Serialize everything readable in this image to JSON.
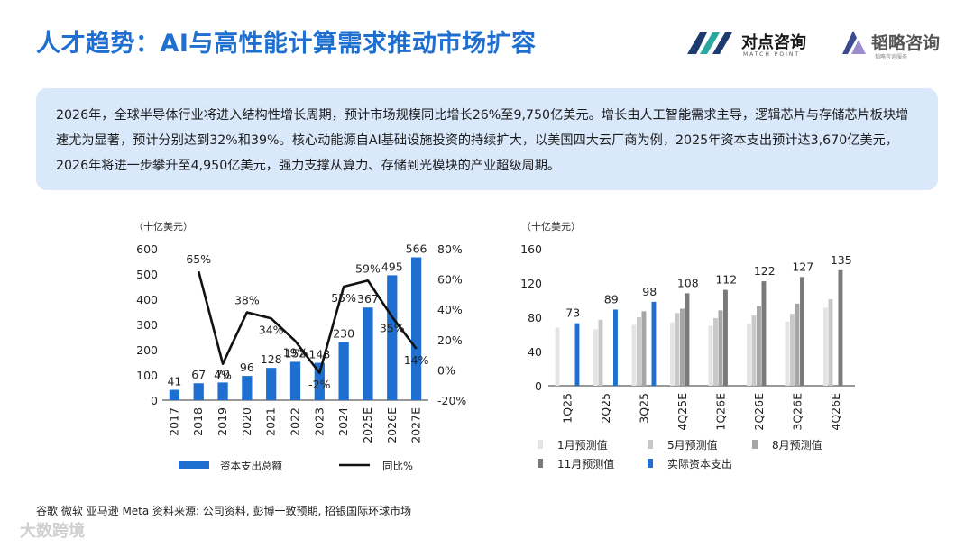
{
  "header": {
    "title": "人才趋势：AI与高性能计算需求推动市场扩容",
    "logo1_name": "对点咨询",
    "logo1_sub": "MATCH POINT",
    "logo2_name": "韬略咨询",
    "logo2_sub": "韬略咨询服务"
  },
  "summary": "2026年，全球半导体行业将进入结构性增长周期，预计市场规模同比增长26%至9,750亿美元。增长由人工智能需求主导，逻辑芯片与存储芯片板块增速尤为显著，预计分别达到32%和39%。核心动能源自AI基础设施投资的持续扩大，以美国四大云厂商为例，2025年资本支出预计达3,670亿美元，2026年将进一步攀升至4,950亿美元，强力支撑从算力、存储到光模块的产业超级周期。",
  "footer": {
    "source": "谷歌 微软 亚马逊 Meta 资料来源: 公司资料, 彭博一致预期, 招银国际环球市场",
    "watermark": "大数跨境"
  },
  "colors": {
    "accent": "#1f6fd1",
    "bar": "#1f6fd1",
    "line": "#111111"
  },
  "chart_data": [
    {
      "type": "bar",
      "unit_label": "（十亿美元）",
      "categories": [
        "2017",
        "2018",
        "2019",
        "2020",
        "2021",
        "2022",
        "2023",
        "2024",
        "2025E",
        "2026E",
        "2027E"
      ],
      "series": [
        {
          "name": "资本支出总额",
          "type": "bar",
          "axis": "left",
          "values": [
            41,
            67,
            70,
            96,
            128,
            152,
            148,
            230,
            367,
            495,
            566
          ]
        },
        {
          "name": "同比%",
          "type": "line",
          "axis": "right",
          "values": [
            null,
            65,
            4,
            38,
            34,
            19,
            -2,
            55,
            59,
            35,
            14
          ]
        }
      ],
      "ylim_left": [
        0,
        600
      ],
      "yticks_left": [
        "0",
        "100",
        "200",
        "300",
        "400",
        "500",
        "600"
      ],
      "ylim_right": [
        -20,
        80
      ],
      "yticks_right": [
        "-20%",
        "0%",
        "20%",
        "40%",
        "60%",
        "80%"
      ],
      "legend_position": "bottom"
    },
    {
      "type": "bar",
      "unit_label": "（十亿美元）",
      "categories": [
        "1Q25",
        "2Q25",
        "3Q25",
        "4Q25E",
        "1Q26E",
        "2Q26E",
        "3Q26E",
        "4Q26E"
      ],
      "series": [
        {
          "name": "1月预测值",
          "color": "#e4e4e4",
          "values": [
            68,
            66,
            71,
            74,
            70,
            72,
            75,
            91
          ]
        },
        {
          "name": "5月预测值",
          "color": "#c8c8c8",
          "values": [
            null,
            77,
            80,
            85,
            79,
            82,
            84,
            101
          ]
        },
        {
          "name": "8月预测值",
          "color": "#a6a6a6",
          "values": [
            null,
            null,
            87,
            90,
            88,
            93,
            96,
            null
          ]
        },
        {
          "name": "11月预测值",
          "color": "#7a7a7a",
          "values": [
            null,
            null,
            null,
            108,
            112,
            122,
            127,
            135
          ]
        },
        {
          "name": "实际资本支出",
          "color": "#1f6fd1",
          "values": [
            73,
            89,
            98,
            null,
            null,
            null,
            null,
            null
          ]
        }
      ],
      "value_labels": [
        "73",
        "89",
        "98",
        "108",
        "112",
        "122",
        "127",
        "135"
      ],
      "ylim": [
        0,
        160
      ],
      "yticks": [
        "0",
        "40",
        "80",
        "120",
        "160"
      ],
      "legend_position": "bottom"
    }
  ]
}
